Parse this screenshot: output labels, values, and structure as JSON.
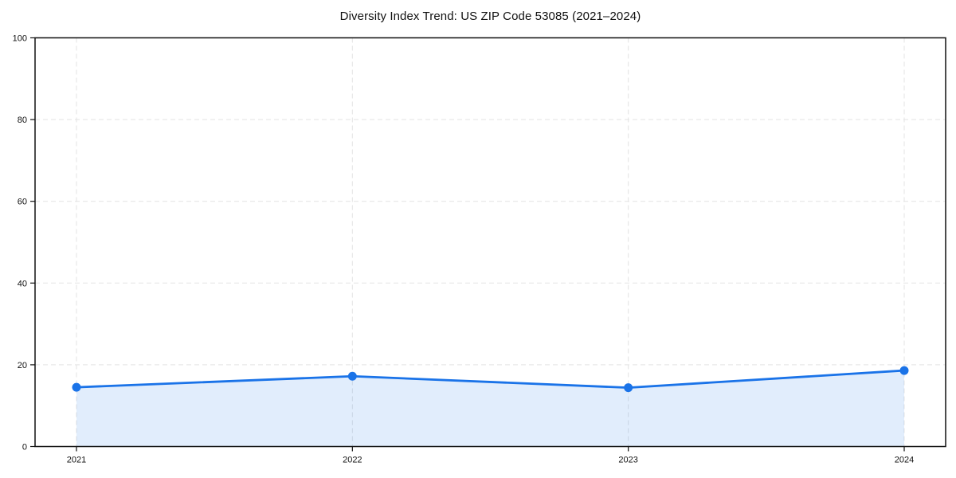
{
  "chart_data": {
    "type": "line",
    "title": "Diversity Index Trend: US ZIP Code 53085 (2021–2024)",
    "categories": [
      "2021",
      "2022",
      "2023",
      "2024"
    ],
    "series": [
      {
        "name": "Diversity Index",
        "values": [
          14.5,
          17.2,
          14.4,
          18.6
        ]
      }
    ],
    "xlabel": "",
    "ylabel": "",
    "ylim": [
      0,
      100
    ],
    "yticks": [
      0,
      20,
      40,
      60,
      80,
      100
    ],
    "grid": true,
    "grid_style": "dashed",
    "legend": false,
    "area_fill": true,
    "marker": "circle",
    "colors": {
      "line": "#1a73e8",
      "marker": "#1a73e8",
      "fill": "rgba(26,115,232,0.13)",
      "grid": "#e3e3e3",
      "axis": "#111111",
      "tick_text": "#111111",
      "background": "#ffffff"
    }
  }
}
